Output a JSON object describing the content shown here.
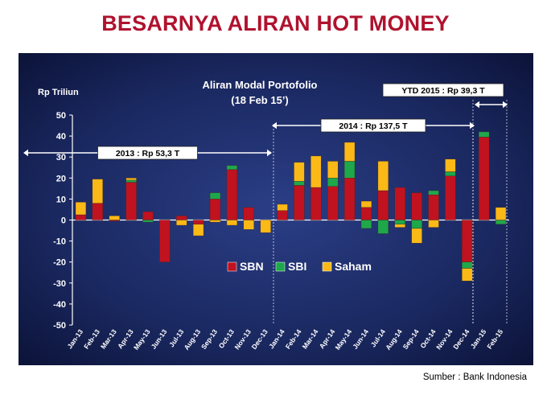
{
  "page": {
    "title": "BESARNYA ALIRAN HOT MONEY",
    "source": "Sumber : Bank Indonesia"
  },
  "chart_data": {
    "type": "bar",
    "stacked": true,
    "title": "Aliran Modal Portofolio",
    "subtitle": "(18 Feb 15’)",
    "ylabel": "Rp Triliun",
    "xlabel": "",
    "ylim": [
      -50,
      50
    ],
    "yticks": [
      -50,
      -40,
      -30,
      -20,
      -10,
      0,
      10,
      20,
      30,
      40,
      50
    ],
    "grid": false,
    "legend_position": "center",
    "categories": [
      "Jan-13",
      "Feb-13",
      "Mar-13",
      "Apr-13",
      "May-13",
      "Jun-13",
      "Jul-13",
      "Aug-13",
      "Sep-13",
      "Oct-13",
      "Nov-13",
      "Dec-13",
      "Jan-14",
      "Feb-14",
      "Mar-14",
      "Apr-14",
      "May-14",
      "Jun-14",
      "Jul-14",
      "Aug-14",
      "Sep-14",
      "Oct-14",
      "Nov-14",
      "Dec-14",
      "Jan-15",
      "Feb-15"
    ],
    "series": [
      {
        "name": "SBN",
        "color": "#c1121f",
        "values": [
          2.5,
          8,
          -0.5,
          18,
          4,
          -20,
          2,
          -2,
          10,
          24,
          6,
          0,
          4.5,
          16.5,
          15.5,
          16,
          20,
          6,
          14,
          15.5,
          13,
          12,
          21,
          -20,
          39.5,
          0
        ]
      },
      {
        "name": "SBI",
        "color": "#1fa84a",
        "values": [
          0,
          0,
          0,
          1,
          -1,
          0,
          0,
          0,
          3,
          2,
          0,
          0,
          0,
          2,
          0,
          4,
          8,
          -4,
          -6.5,
          -2,
          -4,
          2,
          2,
          -3,
          2.5,
          -2
        ]
      },
      {
        "name": "Saham",
        "color": "#fbb917",
        "values": [
          6,
          11.5,
          2,
          1,
          0,
          0,
          -2.5,
          -5.5,
          -1,
          -2.5,
          -4.5,
          -6,
          3,
          9,
          15,
          8,
          9,
          3,
          14,
          -1.5,
          -7,
          -3.5,
          6,
          -6,
          0,
          6
        ]
      }
    ],
    "annotations": [
      {
        "label": "2013 : Rp 53,3 T",
        "from": "Jan-13",
        "to": "Dec-13"
      },
      {
        "label": "2014 : Rp 137,5 T",
        "from": "Jan-14",
        "to": "Dec-14"
      },
      {
        "label": "YTD 2015 : Rp 39,3 T",
        "from": "Jan-15",
        "to": "Feb-15"
      }
    ]
  }
}
